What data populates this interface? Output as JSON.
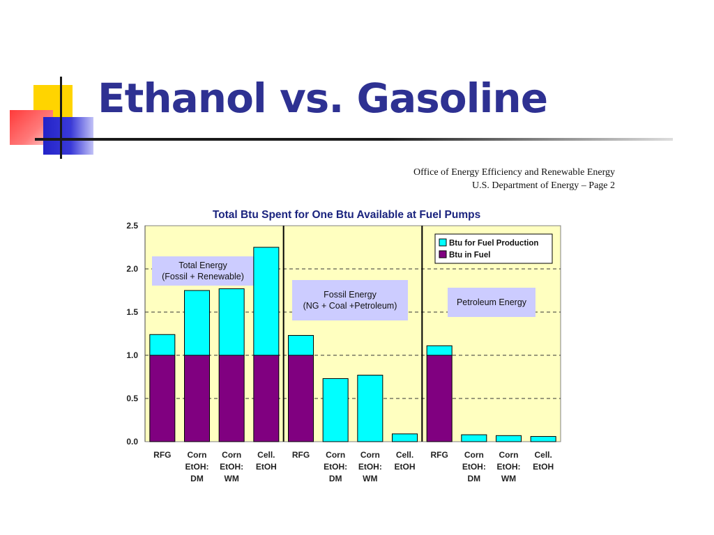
{
  "slide": {
    "title": "Ethanol vs. Gasoline",
    "title_color": "#2e3192"
  },
  "source_note": {
    "line1": "Office of Energy Efficiency and Renewable Energy",
    "line2": "U.S. Department of Energy – Page 2"
  },
  "chart_data": {
    "type": "bar",
    "stacked": true,
    "title": "Total Btu Spent for One Btu Available at Fuel Pumps",
    "ylim": [
      0,
      2.5
    ],
    "yticks": [
      "0.0",
      "0.5",
      "1.0",
      "1.5",
      "2.0",
      "2.5"
    ],
    "grid": "horizontal dashed",
    "legend_position": "top-right",
    "categories": [
      [
        "RFG"
      ],
      [
        "Corn",
        "EtOH:",
        "DM"
      ],
      [
        "Corn",
        "EtOH:",
        "WM"
      ],
      [
        "Cell.",
        "EtOH"
      ],
      [
        "RFG"
      ],
      [
        "Corn",
        "EtOH:",
        "DM"
      ],
      [
        "Corn",
        "EtOH:",
        "WM"
      ],
      [
        "Cell.",
        "EtOH"
      ],
      [
        "RFG"
      ],
      [
        "Corn",
        "EtOH:",
        "DM"
      ],
      [
        "Corn",
        "EtOH:",
        "WM"
      ],
      [
        "Cell.",
        "EtOH"
      ]
    ],
    "series": [
      {
        "name": "Btu in Fuel",
        "color": "#800080",
        "values": [
          1.0,
          1.0,
          1.0,
          1.0,
          1.0,
          0,
          0,
          0,
          1.0,
          0,
          0,
          0
        ]
      },
      {
        "name": "Btu for Fuel Production",
        "color": "#00ffff",
        "values": [
          0.24,
          0.75,
          0.77,
          1.25,
          0.23,
          0.73,
          0.77,
          0.09,
          0.11,
          0.08,
          0.07,
          0.06
        ]
      }
    ],
    "groups": [
      {
        "label_lines": [
          "Total Energy",
          "(Fossil + Renewable)"
        ]
      },
      {
        "label_lines": [
          "Fossil Energy",
          "(NG + Coal +Petroleum)"
        ]
      },
      {
        "label_lines": [
          "Petroleum Energy"
        ]
      }
    ]
  }
}
